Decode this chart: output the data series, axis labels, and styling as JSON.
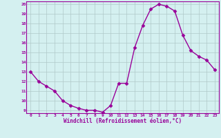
{
  "x": [
    0,
    1,
    2,
    3,
    4,
    5,
    6,
    7,
    8,
    9,
    10,
    11,
    12,
    13,
    14,
    15,
    16,
    17,
    18,
    19,
    20,
    21,
    22,
    23
  ],
  "y": [
    13,
    12,
    11.5,
    11,
    10,
    9.5,
    9.2,
    9.0,
    9.0,
    8.8,
    9.5,
    11.8,
    11.8,
    15.5,
    17.8,
    19.5,
    20.0,
    19.8,
    19.3,
    16.8,
    15.2,
    14.6,
    14.2,
    13.2
  ],
  "line_color": "#990099",
  "marker": "D",
  "markersize": 2.5,
  "linewidth": 1.0,
  "bg_color": "#d4f0f0",
  "grid_color": "#b0c8c8",
  "xlabel": "Windchill (Refroidissement éolien,°C)",
  "xlabel_color": "#990099",
  "tick_color": "#990099",
  "xlim": [
    -0.5,
    23.5
  ],
  "ylim": [
    8.7,
    20.3
  ],
  "yticks": [
    9,
    10,
    11,
    12,
    13,
    14,
    15,
    16,
    17,
    18,
    19,
    20
  ],
  "xticks": [
    0,
    1,
    2,
    3,
    4,
    5,
    6,
    7,
    8,
    9,
    10,
    11,
    12,
    13,
    14,
    15,
    16,
    17,
    18,
    19,
    20,
    21,
    22,
    23
  ],
  "spine_color": "#990099"
}
